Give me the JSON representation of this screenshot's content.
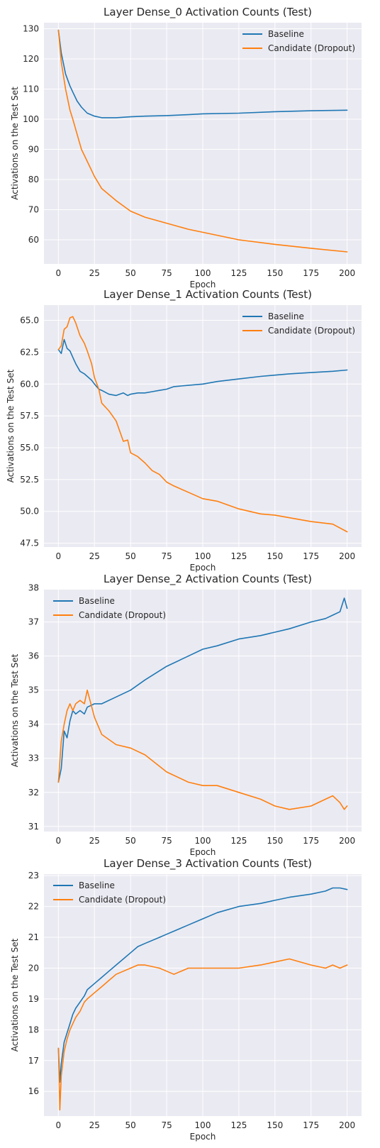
{
  "figure": {
    "colors": {
      "baseline": "#1f77b4",
      "candidate": "#ff7f0e",
      "plot_bg": "#eaeaf2",
      "grid": "#ffffff"
    }
  },
  "chart_data": [
    {
      "type": "line",
      "title": "Layer Dense_0 Activation Counts (Test)",
      "xlabel": "Epoch",
      "ylabel": "Activations on the Test Set",
      "xlim": [
        -10,
        210
      ],
      "ylim": [
        52,
        132
      ],
      "xticks": [
        0,
        25,
        50,
        75,
        100,
        125,
        150,
        175,
        200
      ],
      "yticks": [
        60,
        70,
        80,
        90,
        100,
        110,
        120,
        130
      ],
      "ytick_labels": [
        "60",
        "70",
        "80",
        "90",
        "100",
        "110",
        "120",
        "130"
      ],
      "grid": true,
      "legend": "upper right",
      "x": [
        0,
        2,
        5,
        8,
        10,
        13,
        16,
        20,
        25,
        30,
        40,
        50,
        60,
        75,
        90,
        100,
        125,
        150,
        175,
        200
      ],
      "series": [
        {
          "name": "Baseline",
          "color": "#1f77b4",
          "values": [
            129.5,
            122,
            115,
            111,
            109,
            106,
            104,
            102,
            101,
            100.5,
            100.5,
            100.8,
            101,
            101.2,
            101.5,
            101.8,
            102,
            102.5,
            102.8,
            103
          ]
        },
        {
          "name": "Candidate (Dropout)",
          "color": "#ff7f0e",
          "values": [
            129.5,
            119,
            110,
            103,
            100,
            95,
            90,
            86,
            81,
            77,
            73,
            69.5,
            67.5,
            65.5,
            63.5,
            62.5,
            60,
            58.5,
            57.2,
            56
          ]
        }
      ]
    },
    {
      "type": "line",
      "title": "Layer Dense_1 Activation Counts (Test)",
      "xlabel": "Epoch",
      "ylabel": "Activations on the Test Set",
      "xlim": [
        -10,
        210
      ],
      "ylim": [
        47.2,
        66.2
      ],
      "xticks": [
        0,
        25,
        50,
        75,
        100,
        125,
        150,
        175,
        200
      ],
      "yticks": [
        47.5,
        50.0,
        52.5,
        55.0,
        57.5,
        60.0,
        62.5,
        65.0
      ],
      "ytick_labels": [
        "47.5",
        "50.0",
        "52.5",
        "55.0",
        "57.5",
        "60.0",
        "62.5",
        "65.0"
      ],
      "grid": true,
      "legend": "upper right",
      "x": [
        0,
        2,
        4,
        6,
        8,
        10,
        12,
        15,
        18,
        20,
        23,
        25,
        28,
        30,
        35,
        40,
        45,
        48,
        50,
        55,
        60,
        65,
        70,
        75,
        80,
        90,
        100,
        110,
        125,
        140,
        150,
        160,
        175,
        190,
        200
      ],
      "series": [
        {
          "name": "Baseline",
          "color": "#1f77b4",
          "values": [
            62.7,
            62.4,
            63.5,
            62.8,
            62.6,
            62.1,
            61.6,
            61,
            60.8,
            60.6,
            60.3,
            60,
            59.6,
            59.5,
            59.2,
            59.1,
            59.3,
            59.1,
            59.2,
            59.3,
            59.3,
            59.4,
            59.5,
            59.6,
            59.8,
            59.9,
            60,
            60.2,
            60.4,
            60.6,
            60.7,
            60.8,
            60.9,
            61.0,
            61.1
          ]
        },
        {
          "name": "Candidate (Dropout)",
          "color": "#ff7f0e",
          "values": [
            62.7,
            63,
            64.3,
            64.5,
            65.2,
            65.3,
            64.8,
            63.8,
            63.2,
            62.6,
            61.6,
            60.5,
            59.6,
            58.5,
            57.9,
            57.1,
            55.5,
            55.6,
            54.6,
            54.3,
            53.8,
            53.2,
            52.9,
            52.3,
            52.0,
            51.5,
            51.0,
            50.8,
            50.2,
            49.8,
            49.7,
            49.5,
            49.2,
            49.0,
            48.4
          ]
        }
      ]
    },
    {
      "type": "line",
      "title": "Layer Dense_2 Activation Counts (Test)",
      "xlabel": "Epoch",
      "ylabel": "Activations on the Test Set",
      "xlim": [
        -10,
        210
      ],
      "ylim": [
        30.85,
        37.95
      ],
      "xticks": [
        0,
        25,
        50,
        75,
        100,
        125,
        150,
        175,
        200
      ],
      "yticks": [
        31,
        32,
        33,
        34,
        35,
        36,
        37,
        38
      ],
      "ytick_labels": [
        "31",
        "32",
        "33",
        "34",
        "35",
        "36",
        "37",
        "38"
      ],
      "grid": true,
      "legend": "upper left",
      "x": [
        0,
        2,
        4,
        6,
        8,
        10,
        12,
        15,
        18,
        20,
        25,
        30,
        40,
        50,
        60,
        75,
        90,
        100,
        110,
        125,
        140,
        150,
        160,
        175,
        185,
        190,
        195,
        198,
        200
      ],
      "series": [
        {
          "name": "Baseline",
          "color": "#1f77b4",
          "values": [
            32.3,
            32.7,
            33.8,
            33.6,
            34.1,
            34.4,
            34.3,
            34.4,
            34.3,
            34.5,
            34.6,
            34.6,
            34.8,
            35.0,
            35.3,
            35.7,
            36.0,
            36.2,
            36.3,
            36.5,
            36.6,
            36.7,
            36.8,
            37.0,
            37.1,
            37.2,
            37.3,
            37.7,
            37.4
          ]
        },
        {
          "name": "Candidate (Dropout)",
          "color": "#ff7f0e",
          "values": [
            32.3,
            33.5,
            34.0,
            34.4,
            34.6,
            34.4,
            34.6,
            34.7,
            34.6,
            35.0,
            34.2,
            33.7,
            33.4,
            33.3,
            33.1,
            32.6,
            32.3,
            32.2,
            32.2,
            32.0,
            31.8,
            31.6,
            31.5,
            31.6,
            31.8,
            31.9,
            31.7,
            31.5,
            31.6
          ]
        }
      ]
    },
    {
      "type": "line",
      "title": "Layer Dense_3 Activation Counts (Test)",
      "xlabel": "Epoch",
      "ylabel": "Activations on the Test Set",
      "xlim": [
        -10,
        210
      ],
      "ylim": [
        15.2,
        23.05
      ],
      "xticks": [
        0,
        25,
        50,
        75,
        100,
        125,
        150,
        175,
        200
      ],
      "yticks": [
        16,
        17,
        18,
        19,
        20,
        21,
        22,
        23
      ],
      "ytick_labels": [
        "16",
        "17",
        "18",
        "19",
        "20",
        "21",
        "22",
        "23"
      ],
      "grid": true,
      "legend": "upper left",
      "x": [
        0,
        1,
        2,
        4,
        6,
        8,
        10,
        12,
        15,
        18,
        20,
        25,
        30,
        35,
        40,
        45,
        50,
        55,
        60,
        70,
        75,
        80,
        90,
        100,
        110,
        125,
        140,
        150,
        160,
        175,
        185,
        190,
        195,
        200
      ],
      "series": [
        {
          "name": "Baseline",
          "color": "#1f77b4",
          "values": [
            17.4,
            16.3,
            16.9,
            17.6,
            17.9,
            18.2,
            18.5,
            18.7,
            18.9,
            19.1,
            19.3,
            19.5,
            19.7,
            19.9,
            20.1,
            20.3,
            20.5,
            20.7,
            20.8,
            21.0,
            21.1,
            21.2,
            21.4,
            21.6,
            21.8,
            22.0,
            22.1,
            22.2,
            22.3,
            22.4,
            22.5,
            22.6,
            22.6,
            22.55
          ]
        },
        {
          "name": "Candidate (Dropout)",
          "color": "#ff7f0e",
          "values": [
            17.4,
            15.4,
            16.5,
            17.3,
            17.7,
            18.0,
            18.2,
            18.4,
            18.6,
            18.9,
            19.0,
            19.2,
            19.4,
            19.6,
            19.8,
            19.9,
            20.0,
            20.1,
            20.1,
            20.0,
            19.9,
            19.8,
            20.0,
            20.0,
            20.0,
            20.0,
            20.1,
            20.2,
            20.3,
            20.1,
            20.0,
            20.1,
            20.0,
            20.1
          ]
        }
      ]
    }
  ]
}
